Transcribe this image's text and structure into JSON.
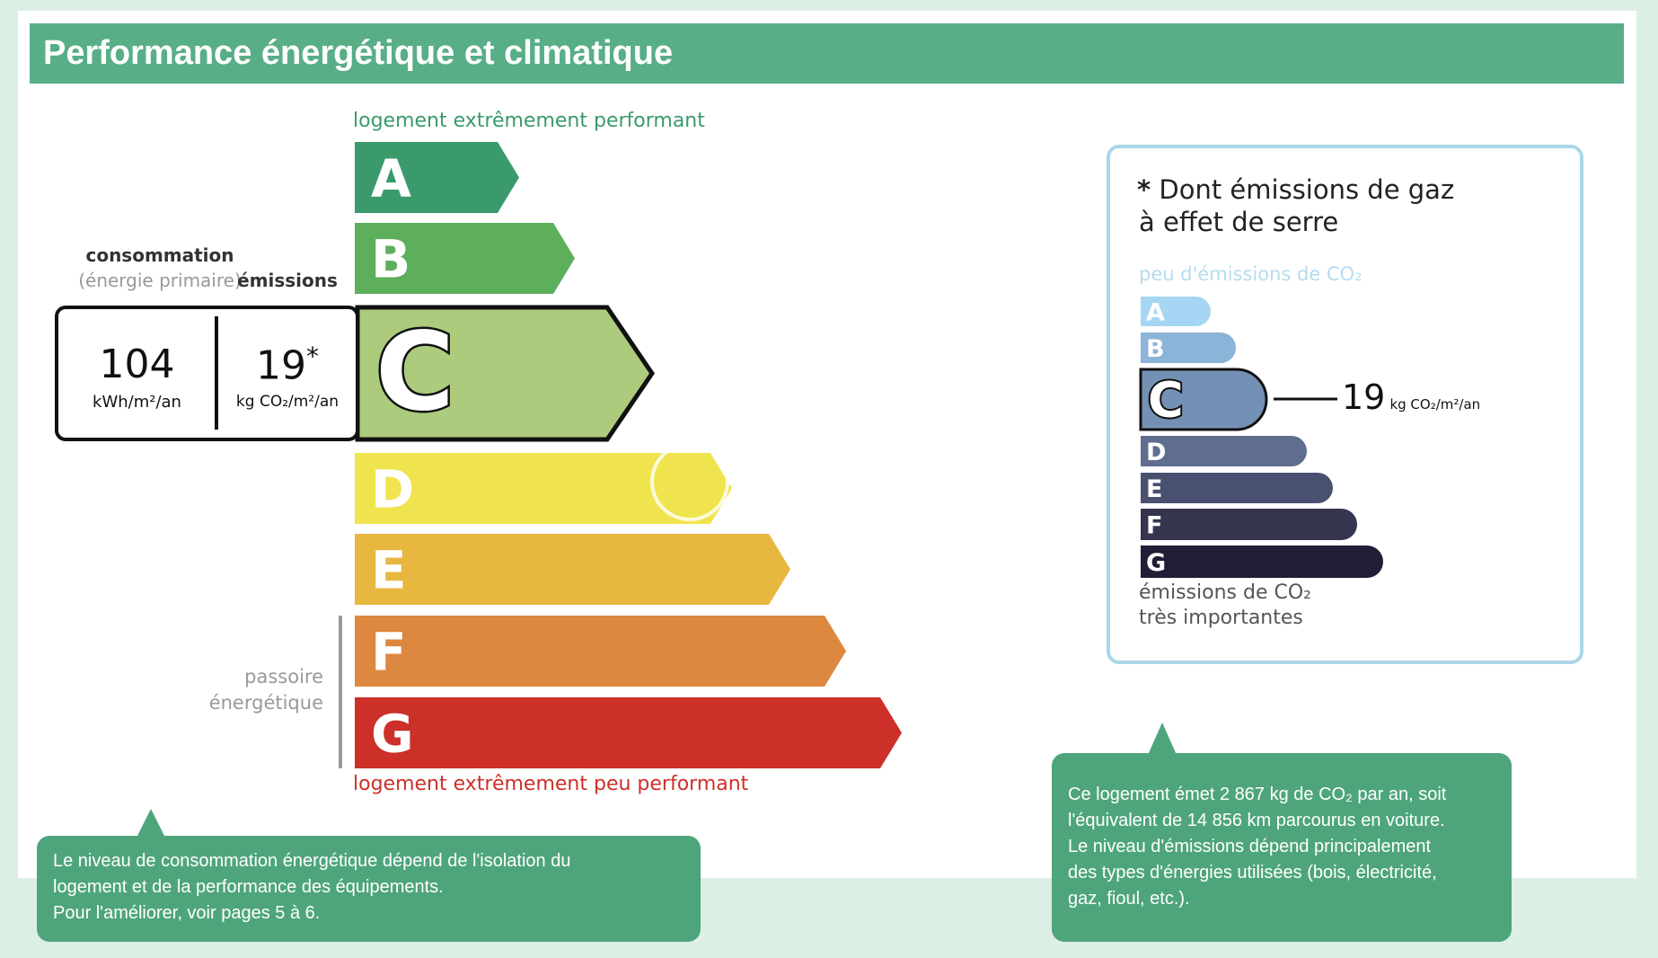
{
  "title": "Performance énergétique et climatique",
  "energy": {
    "top_label": "logement extrêmement performant",
    "bottom_label": "logement extrêmement peu performant",
    "passoire": [
      "passoire",
      "énergétique"
    ],
    "consumption_label": "consommation",
    "consumption_sub": "(énergie primaire)",
    "emissions_label": "émissions",
    "consumption_value": "104",
    "consumption_unit": "kWh/m²/an",
    "emissions_value": "19",
    "emissions_star": "*",
    "emissions_unit": "kg CO₂/m²/an",
    "current_class": "C",
    "classes": [
      {
        "letter": "A",
        "color": "#3a9a6c"
      },
      {
        "letter": "B",
        "color": "#5daf5b"
      },
      {
        "letter": "C",
        "color": "#adcb7d"
      },
      {
        "letter": "D",
        "color": "#f0e44e"
      },
      {
        "letter": "E",
        "color": "#e8b740"
      },
      {
        "letter": "F",
        "color": "#dd8840"
      },
      {
        "letter": "G",
        "color": "#cc3029"
      }
    ]
  },
  "ghg": {
    "title_line1": "Dont émissions de gaz",
    "title_star": "*",
    "title_line2": "à effet de serre",
    "top_label": "peu d'émissions de CO₂",
    "bottom_label1": "émissions de CO₂",
    "bottom_label2": "très importantes",
    "value": "19",
    "unit": "kg CO₂/m²/an",
    "current_class": "C",
    "classes": [
      {
        "letter": "A",
        "color": "#a6d6f3"
      },
      {
        "letter": "B",
        "color": "#8cb3d8"
      },
      {
        "letter": "C",
        "color": "#7590b5"
      },
      {
        "letter": "D",
        "color": "#5f6e8f"
      },
      {
        "letter": "E",
        "color": "#4a5070"
      },
      {
        "letter": "F",
        "color": "#36354f"
      },
      {
        "letter": "G",
        "color": "#231c36"
      }
    ]
  },
  "callout_left": {
    "lines": [
      "Le niveau de consommation énergétique dépend de l'isolation du",
      "logement et de la performance des équipements.",
      "Pour l'améliorer, voir pages 5 à 6."
    ]
  },
  "callout_right": {
    "lines": [
      "Ce logement émet 2 867 kg de CO₂ par an, soit",
      "l'équivalent de 14 856 km parcourus en voiture.",
      "Le niveau d'émissions dépend principalement",
      "des types d'énergies utilisées (bois, électricité,",
      "gaz, fioul, etc.)."
    ]
  },
  "colors": {
    "header": "#58ae87",
    "callout": "#4ea57c",
    "ghg_border": "#a9d6e8"
  }
}
